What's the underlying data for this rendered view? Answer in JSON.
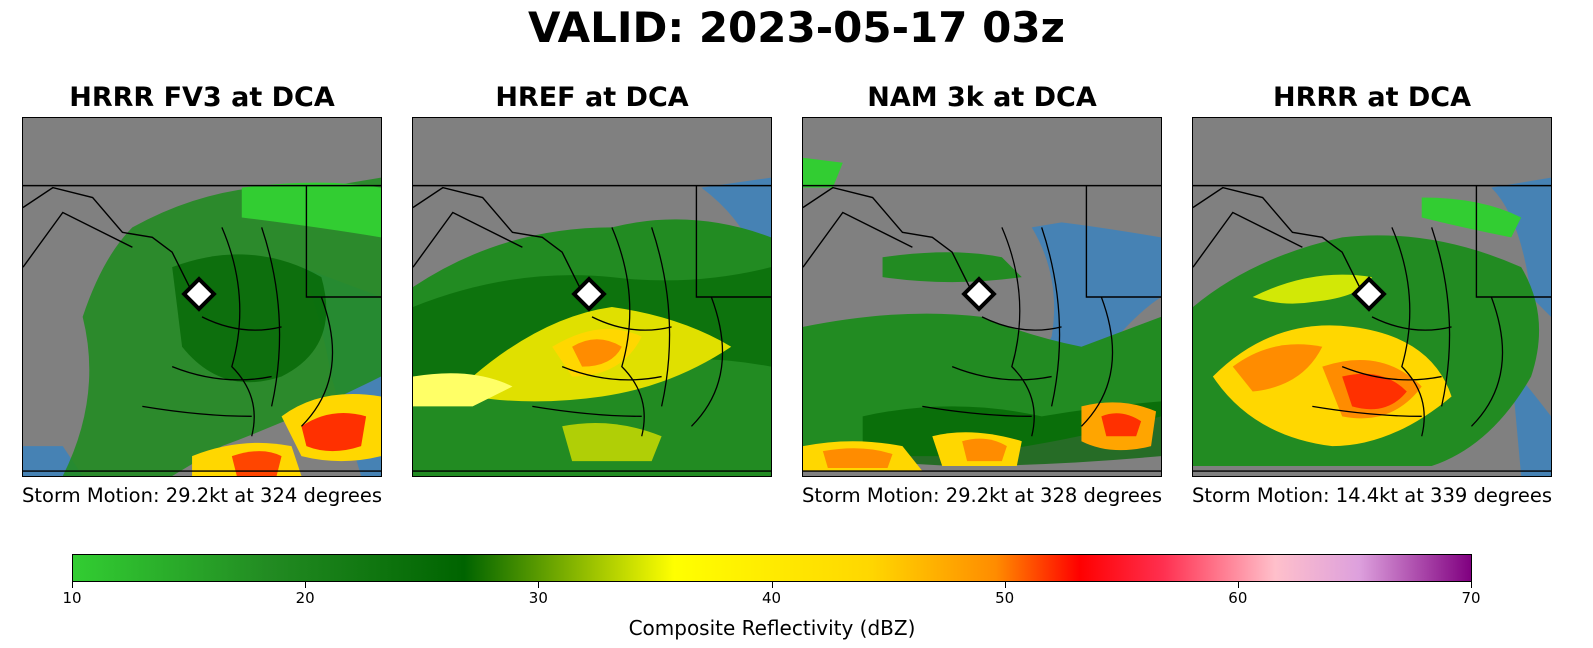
{
  "title": "VALID: 2023-05-17 03z",
  "panels": [
    {
      "title": "HRRR FV3 at DCA",
      "caption": "Storm Motion: 29.2kt at 324 degrees"
    },
    {
      "title": "HREF at DCA",
      "caption": ""
    },
    {
      "title": "NAM 3k at DCA",
      "caption": "Storm Motion: 29.2kt at 328 degrees"
    },
    {
      "title": "HRRR at DCA",
      "caption": "Storm Motion: 14.4kt at 339 degrees"
    }
  ],
  "colorbar": {
    "label": "Composite Reflectivity (dBZ)",
    "ticks": [
      "10",
      "20",
      "30",
      "40",
      "50",
      "60",
      "70"
    ],
    "range": [
      10,
      70
    ],
    "colors": [
      "#32cd32",
      "#228b22",
      "#006400",
      "#ffff00",
      "#ffd700",
      "#ff8c00",
      "#ff0000",
      "#ffc0cb",
      "#800080"
    ]
  },
  "map": {
    "land_color": "#808080",
    "water_color": "#4682b4",
    "station_marker": "white-diamond-marker",
    "station": "DCA"
  }
}
